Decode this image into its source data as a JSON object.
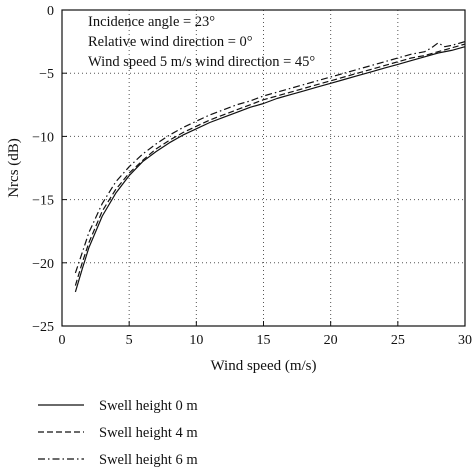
{
  "chart_data": {
    "type": "line",
    "title": "",
    "xlabel": "Wind speed (m/s)",
    "ylabel": "Nrcs (dB)",
    "xlim": [
      0,
      30
    ],
    "ylim": [
      -25,
      0
    ],
    "x_ticks": [
      "0",
      "5",
      "10",
      "15",
      "20",
      "25",
      "30"
    ],
    "y_ticks": [
      "0",
      "−5",
      "−10",
      "−15",
      "−20",
      "−25"
    ],
    "grid": "dotted",
    "legend_position": "below-plot",
    "annotations": [
      "Incidence angle = 23°",
      "Relative wind direction = 0°",
      "Wind speed 5 m/s wind direction = 45°"
    ],
    "series": [
      {
        "name": "Swell height 0 m",
        "dash": "solid",
        "x": [
          1,
          1.5,
          2,
          3,
          4,
          5,
          6,
          7,
          8,
          9,
          10,
          11,
          12,
          13,
          14,
          15,
          16,
          17,
          18,
          19,
          20,
          21,
          22,
          23,
          24,
          25,
          26,
          27,
          28,
          29,
          30
        ],
        "y": [
          -22.3,
          -20.5,
          -18.8,
          -16.3,
          -14.5,
          -13.1,
          -12.0,
          -11.2,
          -10.5,
          -9.9,
          -9.4,
          -8.9,
          -8.5,
          -8.1,
          -7.7,
          -7.4,
          -7.0,
          -6.7,
          -6.4,
          -6.1,
          -5.8,
          -5.5,
          -5.2,
          -4.9,
          -4.6,
          -4.3,
          -4.0,
          -3.7,
          -3.4,
          -3.2,
          -2.9
        ]
      },
      {
        "name": "Swell height 4 m",
        "dash": "dashed",
        "x": [
          1,
          1.5,
          2,
          3,
          4,
          5,
          6,
          7,
          8,
          9,
          10,
          11,
          12,
          13,
          14,
          15,
          16,
          17,
          18,
          19,
          20,
          21,
          22,
          23,
          24,
          25,
          26,
          27,
          28,
          29,
          30
        ],
        "y": [
          -21.8,
          -20.0,
          -18.4,
          -15.9,
          -14.2,
          -12.9,
          -11.9,
          -11.0,
          -10.3,
          -9.7,
          -9.2,
          -8.7,
          -8.3,
          -7.9,
          -7.5,
          -7.1,
          -6.8,
          -6.5,
          -6.2,
          -5.9,
          -5.6,
          -5.3,
          -5.0,
          -4.7,
          -4.4,
          -4.1,
          -3.8,
          -3.6,
          -3.3,
          -3.0,
          -2.7
        ]
      },
      {
        "name": "Swell height 6 m",
        "dash": "dash-dot",
        "x": [
          1,
          1.5,
          2,
          3,
          4,
          5,
          6,
          7,
          8,
          9,
          10,
          11,
          12,
          13,
          14,
          15,
          16,
          17,
          18,
          19,
          20,
          21,
          22,
          23,
          24,
          25,
          26,
          27,
          27.5,
          28,
          28.5,
          29,
          30
        ],
        "y": [
          -20.8,
          -19.2,
          -17.6,
          -15.3,
          -13.6,
          -12.4,
          -11.4,
          -10.6,
          -9.9,
          -9.3,
          -8.8,
          -8.3,
          -7.9,
          -7.5,
          -7.2,
          -6.8,
          -6.5,
          -6.2,
          -5.9,
          -5.6,
          -5.3,
          -5.0,
          -4.7,
          -4.4,
          -4.1,
          -3.8,
          -3.5,
          -3.3,
          -3.0,
          -2.6,
          -2.9,
          -2.8,
          -2.5
        ]
      }
    ]
  }
}
